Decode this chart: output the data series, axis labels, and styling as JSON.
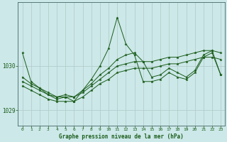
{
  "title": "Graphe pression niveau de la mer (hPa)",
  "background_color": "#cce8e8",
  "grid_color": "#b0c8c8",
  "line_color": "#1a5c1a",
  "xlim": [
    -0.5,
    23.5
  ],
  "ylim": [
    1028.65,
    1031.45
  ],
  "yticks": [
    1029,
    1030
  ],
  "xticks": [
    0,
    1,
    2,
    3,
    4,
    5,
    6,
    7,
    8,
    9,
    10,
    11,
    12,
    13,
    14,
    15,
    16,
    17,
    18,
    19,
    20,
    21,
    22,
    23
  ],
  "hours": [
    0,
    1,
    2,
    3,
    4,
    5,
    6,
    7,
    8,
    9,
    10,
    11,
    12,
    13,
    14,
    15,
    16,
    17,
    18,
    19,
    20,
    21,
    22,
    23
  ],
  "series": [
    [
      1030.3,
      1029.65,
      1029.5,
      1029.35,
      1029.25,
      1029.3,
      1029.2,
      1029.45,
      1029.7,
      1030.0,
      1030.4,
      1031.1,
      1030.5,
      1030.25,
      1029.65,
      1029.65,
      1029.7,
      1029.85,
      1029.75,
      1029.7,
      1029.85,
      1030.2,
      1030.3,
      1029.8
    ],
    [
      1029.65,
      1029.55,
      1029.45,
      1029.35,
      1029.3,
      1029.3,
      1029.3,
      1029.4,
      1029.55,
      1029.7,
      1029.85,
      1030.0,
      1030.05,
      1030.1,
      1030.1,
      1030.1,
      1030.15,
      1030.2,
      1030.2,
      1030.25,
      1030.3,
      1030.35,
      1030.35,
      1030.3
    ],
    [
      1029.55,
      1029.45,
      1029.35,
      1029.25,
      1029.2,
      1029.2,
      1029.2,
      1029.3,
      1029.45,
      1029.6,
      1029.7,
      1029.85,
      1029.9,
      1029.95,
      1029.95,
      1029.95,
      1030.0,
      1030.05,
      1030.05,
      1030.1,
      1030.15,
      1030.2,
      1030.2,
      1030.15
    ],
    [
      1029.75,
      1029.6,
      1029.5,
      1029.4,
      1029.3,
      1029.35,
      1029.3,
      1029.45,
      1029.6,
      1029.8,
      1029.95,
      1030.15,
      1030.25,
      1030.3,
      1030.1,
      1029.75,
      1029.8,
      1029.95,
      1029.85,
      1029.75,
      1029.9,
      1030.25,
      1030.35,
      1029.8
    ]
  ]
}
